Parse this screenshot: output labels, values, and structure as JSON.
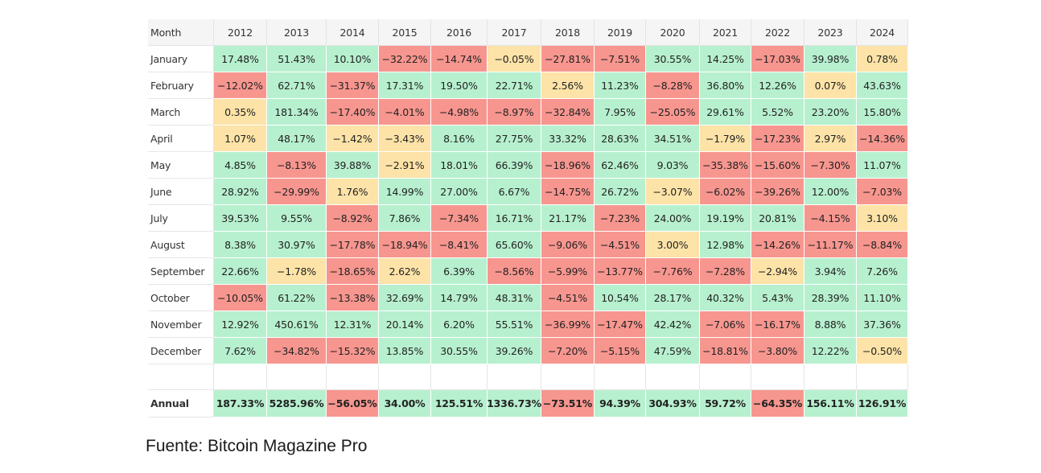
{
  "colors": {
    "positive": "#b7f0cf",
    "small": "#fde3a7",
    "negative": "#f7968f",
    "header": "#f5f5f5"
  },
  "chart_data": {
    "type": "table",
    "corner_label": "Month",
    "columns": [
      "2012",
      "2013",
      "2014",
      "2015",
      "2016",
      "2017",
      "2018",
      "2019",
      "2020",
      "2021",
      "2022",
      "2023",
      "2024"
    ],
    "rows": [
      {
        "label": "January",
        "values": [
          "17.48%",
          "51.43%",
          "10.10%",
          "-32.22%",
          "-14.74%",
          "-0.05%",
          "-27.81%",
          "-7.51%",
          "30.55%",
          "14.25%",
          "-17.03%",
          "39.98%",
          "0.78%"
        ]
      },
      {
        "label": "February",
        "values": [
          "-12.02%",
          "62.71%",
          "-31.37%",
          "17.31%",
          "19.50%",
          "22.71%",
          "2.56%",
          "11.23%",
          "-8.28%",
          "36.80%",
          "12.26%",
          "0.07%",
          "43.63%"
        ]
      },
      {
        "label": "March",
        "values": [
          "0.35%",
          "181.34%",
          "-17.40%",
          "-4.01%",
          "-4.98%",
          "-8.97%",
          "-32.84%",
          "7.95%",
          "-25.05%",
          "29.61%",
          "5.52%",
          "23.20%",
          "15.80%"
        ]
      },
      {
        "label": "April",
        "values": [
          "1.07%",
          "48.17%",
          "-1.42%",
          "-3.43%",
          "8.16%",
          "27.75%",
          "33.32%",
          "28.63%",
          "34.51%",
          "-1.79%",
          "-17.23%",
          "2.97%",
          "-14.36%"
        ]
      },
      {
        "label": "May",
        "values": [
          "4.85%",
          "-8.13%",
          "39.88%",
          "-2.91%",
          "18.01%",
          "66.39%",
          "-18.96%",
          "62.46%",
          "9.03%",
          "-35.38%",
          "-15.60%",
          "-7.30%",
          "11.07%"
        ]
      },
      {
        "label": "June",
        "values": [
          "28.92%",
          "-29.99%",
          "1.76%",
          "14.99%",
          "27.00%",
          "6.67%",
          "-14.75%",
          "26.72%",
          "-3.07%",
          "-6.02%",
          "-39.26%",
          "12.00%",
          "-7.03%"
        ]
      },
      {
        "label": "July",
        "values": [
          "39.53%",
          "9.55%",
          "-8.92%",
          "7.86%",
          "-7.34%",
          "16.71%",
          "21.17%",
          "-7.23%",
          "24.00%",
          "19.19%",
          "20.81%",
          "-4.15%",
          "3.10%"
        ]
      },
      {
        "label": "August",
        "values": [
          "8.38%",
          "30.97%",
          "-17.78%",
          "-18.94%",
          "-8.41%",
          "65.60%",
          "-9.06%",
          "-4.51%",
          "3.00%",
          "12.98%",
          "-14.26%",
          "-11.17%",
          "-8.84%"
        ]
      },
      {
        "label": "September",
        "values": [
          "22.66%",
          "-1.78%",
          "-18.65%",
          "2.62%",
          "6.39%",
          "-8.56%",
          "-5.99%",
          "-13.77%",
          "-7.76%",
          "-7.28%",
          "-2.94%",
          "3.94%",
          "7.26%"
        ]
      },
      {
        "label": "October",
        "values": [
          "-10.05%",
          "61.22%",
          "-13.38%",
          "32.69%",
          "14.79%",
          "48.31%",
          "-4.51%",
          "10.54%",
          "28.17%",
          "40.32%",
          "5.43%",
          "28.39%",
          "11.10%"
        ]
      },
      {
        "label": "November",
        "values": [
          "12.92%",
          "450.61%",
          "12.31%",
          "20.14%",
          "6.20%",
          "55.51%",
          "-36.99%",
          "-17.47%",
          "42.42%",
          "-7.06%",
          "-16.17%",
          "8.88%",
          "37.36%"
        ]
      },
      {
        "label": "December",
        "values": [
          "7.62%",
          "-34.82%",
          "-15.32%",
          "13.85%",
          "30.55%",
          "39.26%",
          "-7.20%",
          "-5.15%",
          "47.59%",
          "-18.81%",
          "-3.80%",
          "12.22%",
          "-0.50%"
        ]
      }
    ],
    "annual": {
      "label": "Annual",
      "values": [
        "187.33%",
        "5285.96%",
        "-56.05%",
        "34.00%",
        "125.51%",
        "1336.73%",
        "-73.51%",
        "94.39%",
        "304.93%",
        "59.72%",
        "-64.35%",
        "156.11%",
        "126.91%"
      ]
    }
  },
  "source_text": "Fuente: Bitcoin Magazine Pro"
}
